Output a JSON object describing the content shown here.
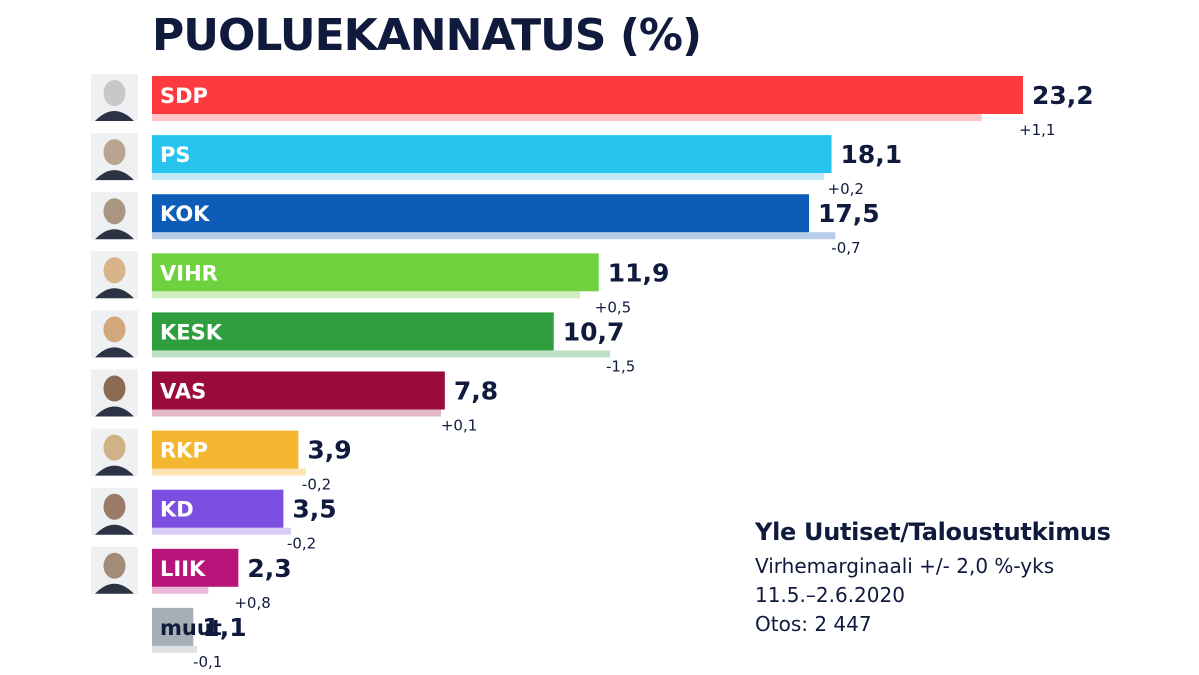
{
  "chart_data": {
    "type": "bar",
    "orientation": "horizontal",
    "title": "PUOLUEKANNATUS (%)",
    "categories": [
      "SDP",
      "PS",
      "KOK",
      "VIHR",
      "KESK",
      "VAS",
      "RKP",
      "KD",
      "LIIK",
      "muut"
    ],
    "values": [
      23.2,
      18.1,
      17.5,
      11.9,
      10.7,
      7.8,
      3.9,
      3.5,
      2.3,
      1.1
    ],
    "value_labels": [
      "23,2",
      "18,1",
      "17,5",
      "11,9",
      "10,7",
      "7,8",
      "3,9",
      "3,5",
      "2,3",
      "1,1"
    ],
    "previous_values": [
      22.1,
      17.9,
      18.2,
      11.4,
      12.2,
      7.7,
      4.1,
      3.7,
      1.5,
      1.2
    ],
    "changes": [
      "+1,1",
      "+0,2",
      "-0,7",
      "+0,5",
      "-1,5",
      "+0,1",
      "-0,2",
      "-0,2",
      "+0,8",
      "-0,1"
    ],
    "colors": [
      "#ff3a3f",
      "#26c4ee",
      "#0d5db8",
      "#6ed13d",
      "#2e9e3f",
      "#9a0a3d",
      "#f5b731",
      "#7b4fe0",
      "#b8157a",
      "#a7afb6"
    ],
    "previous_colors": [
      "#ffc4c6",
      "#c3e8f6",
      "#b7cde9",
      "#cfefc0",
      "#bde2c3",
      "#e3b7c6",
      "#fbe4b2",
      "#d9ccf7",
      "#ebb9d8",
      "#dde1e4"
    ],
    "label_colors": [
      "#ffffff",
      "#ffffff",
      "#ffffff",
      "#ffffff",
      "#ffffff",
      "#ffffff",
      "#ffffff",
      "#ffffff",
      "#ffffff",
      "#0f1a3c"
    ],
    "portrait_tones": [
      "#c8c8c8",
      "#b9a48f",
      "#a99784",
      "#d8b48a",
      "#d3a77c",
      "#8a6a52",
      "#cfb286",
      "#9c7a68",
      "#a28c78",
      ""
    ],
    "xlim": [
      0,
      24
    ],
    "grid": false,
    "legend": "none"
  },
  "source": {
    "title": "Yle Uutiset/Taloustutkimus",
    "lines": [
      "Virhemarginaali +/- 2,0 %-yks",
      "11.5.–2.6.2020",
      "Otos: 2 447"
    ]
  }
}
